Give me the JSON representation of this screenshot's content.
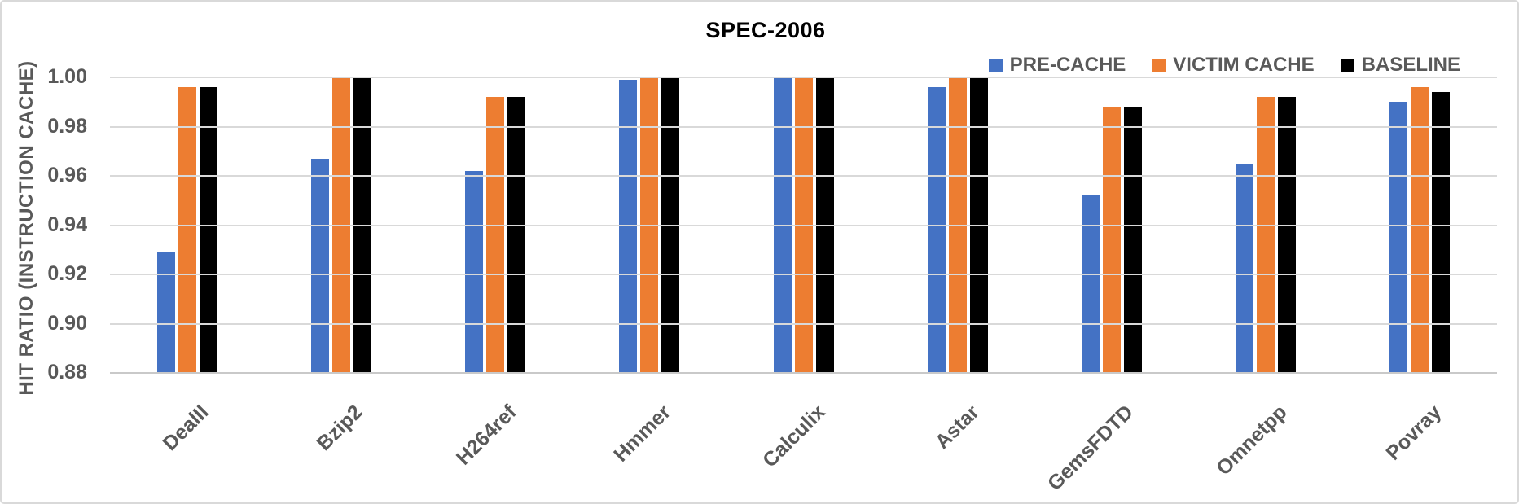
{
  "frame": {
    "background": "#ffffff",
    "border_color": "#d9d9d9"
  },
  "chart_data": {
    "type": "bar",
    "title": "SPEC-2006",
    "xlabel": "",
    "ylabel": "HIT RATIO (INSTRUCTION CACHE)",
    "ylim": [
      0.88,
      1.0
    ],
    "ytick_labels": [
      "1.00",
      "0.98",
      "0.96",
      "0.94",
      "0.92",
      "0.90",
      "0.88"
    ],
    "grid": true,
    "gridline_color": "#d9d9d9",
    "axis_line_color": "#c9c9c9",
    "text_color": "#595959",
    "title_color": "#000000",
    "legend_position": "top-right",
    "categories": [
      "DealII",
      "Bzip2",
      "H264ref",
      "Hmmer",
      "Calculix",
      "Astar",
      "GemsFDTD",
      "Omnetpp",
      "Povray"
    ],
    "series": [
      {
        "name": "PRE-CACHE",
        "color": "#4472C4",
        "values": [
          0.929,
          0.967,
          0.962,
          0.999,
          1.0,
          0.996,
          0.952,
          0.965,
          0.99
        ]
      },
      {
        "name": "VICTIM CACHE",
        "color": "#ED7D31",
        "values": [
          0.996,
          1.0,
          0.992,
          1.0,
          1.0,
          1.0,
          0.988,
          0.992,
          0.996
        ]
      },
      {
        "name": "BASELINE",
        "color": "#000000",
        "values": [
          0.996,
          1.0,
          0.992,
          1.0,
          1.0,
          1.0,
          0.988,
          0.992,
          0.994
        ]
      }
    ]
  }
}
